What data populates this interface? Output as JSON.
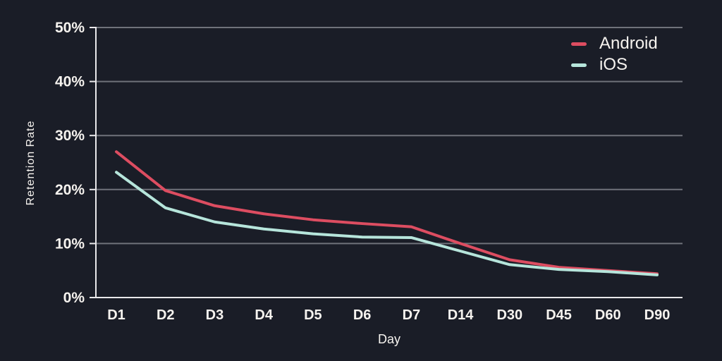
{
  "chart_data": {
    "type": "line",
    "categories": [
      "D1",
      "D2",
      "D3",
      "D4",
      "D5",
      "D6",
      "D7",
      "D14",
      "D30",
      "D45",
      "D60",
      "D90"
    ],
    "series": [
      {
        "name": "Android",
        "color": "#dd4d61",
        "values": [
          27.0,
          19.8,
          17.0,
          15.5,
          14.4,
          13.7,
          13.1,
          10.0,
          7.0,
          5.6,
          5.0,
          4.4
        ]
      },
      {
        "name": "iOS",
        "color": "#b6e5db",
        "values": [
          23.2,
          16.6,
          14.0,
          12.7,
          11.8,
          11.2,
          11.1,
          8.6,
          6.1,
          5.2,
          4.8,
          4.2
        ]
      }
    ],
    "xlabel": "Day",
    "ylabel": "Retention Rate",
    "ylim": [
      0,
      50
    ],
    "ytick_step": 10,
    "ytick_suffix": "%",
    "grid": true,
    "legend_position": "top-right"
  },
  "colors": {
    "background": "#1a1d27",
    "gridline": "#6f727a",
    "axis": "#e9e8ea",
    "text": "#f6f3ef"
  }
}
